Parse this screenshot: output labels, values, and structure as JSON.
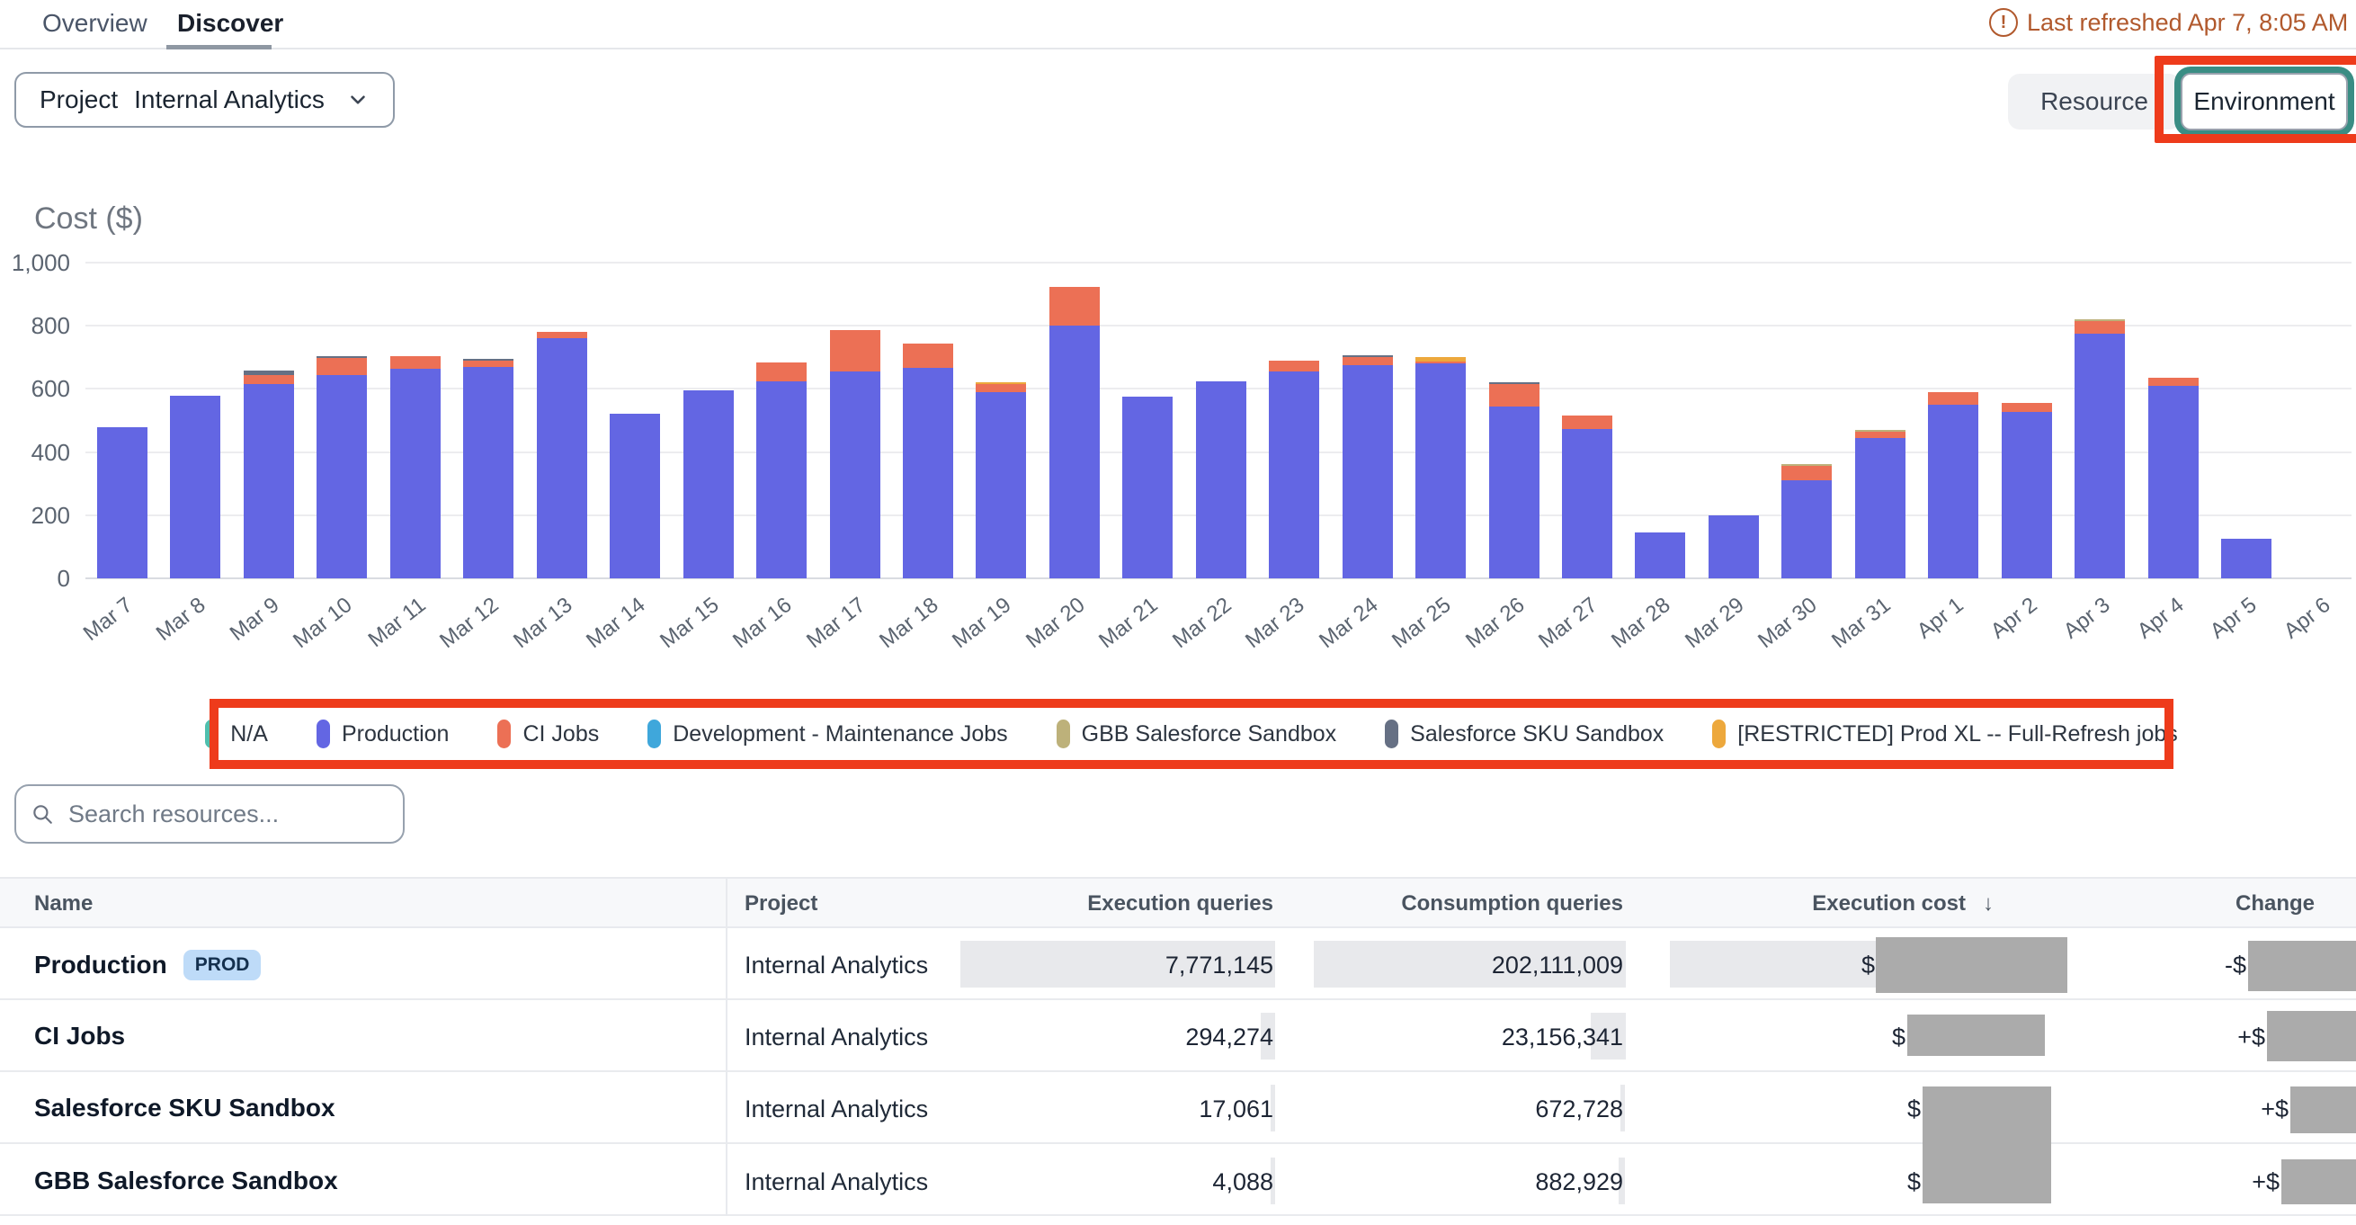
{
  "tabs": {
    "overview": "Overview",
    "discover": "Discover"
  },
  "refresh": {
    "text": "Last refreshed Apr 7, 8:05 AM PD",
    "icon": "alert-circle-icon",
    "color": "#b1592d"
  },
  "filters": {
    "project_label": "Project",
    "project_value": "Internal Analytics",
    "toggle": {
      "resource": "Resource",
      "environment": "Environment",
      "selected": "Environment"
    }
  },
  "annotation_color": "#ee3b1b",
  "chart_data": {
    "type": "bar",
    "stacked": true,
    "title": "Cost ($)",
    "ylabel": "Cost ($)",
    "ylim": [
      0,
      1000
    ],
    "ytick_values": [
      1000,
      800,
      600,
      400,
      200,
      0
    ],
    "yticks": [
      "1,000",
      "800",
      "600",
      "400",
      "200",
      "0"
    ],
    "grid": true,
    "legend_position": "bottom",
    "categories": [
      "Mar 7",
      "Mar 8",
      "Mar 9",
      "Mar 10",
      "Mar 11",
      "Mar 12",
      "Mar 13",
      "Mar 14",
      "Mar 15",
      "Mar 16",
      "Mar 17",
      "Mar 18",
      "Mar 19",
      "Mar 20",
      "Mar 21",
      "Mar 22",
      "Mar 23",
      "Mar 24",
      "Mar 25",
      "Mar 26",
      "Mar 27",
      "Mar 28",
      "Mar 29",
      "Mar 30",
      "Mar 31",
      "Apr 1",
      "Apr 2",
      "Apr 3",
      "Apr 4",
      "Apr 5",
      "Apr 6"
    ],
    "series": [
      {
        "name": "N/A",
        "color": "#4fbfad",
        "values": [
          0,
          0,
          0,
          0,
          0,
          0,
          0,
          0,
          0,
          0,
          0,
          0,
          0,
          0,
          0,
          0,
          0,
          0,
          0,
          0,
          0,
          0,
          0,
          0,
          0,
          0,
          0,
          0,
          0,
          0,
          0
        ]
      },
      {
        "name": "Production",
        "color": "#6366e3",
        "values": [
          480,
          577,
          615,
          645,
          665,
          670,
          760,
          520,
          595,
          625,
          655,
          668,
          590,
          800,
          575,
          623,
          655,
          675,
          680,
          545,
          472,
          146,
          199,
          310,
          445,
          550,
          528,
          775,
          610,
          125,
          0
        ]
      },
      {
        "name": "CI Jobs",
        "color": "#ec7055",
        "values": [
          0,
          0,
          30,
          52,
          40,
          20,
          22,
          0,
          0,
          60,
          130,
          76,
          25,
          122,
          0,
          0,
          34,
          25,
          8,
          70,
          44,
          0,
          0,
          45,
          19,
          40,
          28,
          40,
          25,
          0,
          0
        ]
      },
      {
        "name": "Development - Maintenance Jobs",
        "color": "#3fa7db",
        "values": [
          0,
          0,
          0,
          0,
          0,
          0,
          0,
          0,
          0,
          0,
          0,
          0,
          0,
          0,
          0,
          0,
          0,
          0,
          0,
          0,
          0,
          0,
          0,
          0,
          0,
          0,
          0,
          0,
          0,
          0,
          0
        ]
      },
      {
        "name": "GBB Salesforce Sandbox",
        "color": "#bdb17a",
        "values": [
          0,
          0,
          0,
          0,
          0,
          0,
          0,
          0,
          0,
          0,
          0,
          0,
          0,
          0,
          0,
          0,
          0,
          0,
          0,
          0,
          0,
          0,
          0,
          4,
          4,
          0,
          0,
          4,
          0,
          0,
          0
        ]
      },
      {
        "name": "Salesforce SKU Sandbox",
        "color": "#667084",
        "values": [
          0,
          0,
          12,
          4,
          0,
          4,
          0,
          0,
          0,
          0,
          0,
          0,
          0,
          0,
          0,
          0,
          0,
          3,
          0,
          3,
          0,
          0,
          0,
          0,
          0,
          0,
          0,
          0,
          0,
          0,
          0
        ]
      },
      {
        "name": "[RESTRICTED] Prod XL -- Full-Refresh jobs",
        "color": "#eda83c",
        "values": [
          0,
          0,
          0,
          0,
          0,
          0,
          0,
          0,
          0,
          0,
          0,
          0,
          6,
          0,
          0,
          0,
          0,
          0,
          14,
          0,
          0,
          0,
          0,
          0,
          0,
          0,
          0,
          0,
          0,
          0,
          0
        ]
      }
    ]
  },
  "search": {
    "placeholder": "Search resources..."
  },
  "table": {
    "columns": [
      "Name",
      "Project",
      "Execution queries",
      "Consumption queries",
      "Execution cost",
      "Change"
    ],
    "sort": {
      "column": "Execution cost",
      "direction": "desc",
      "arrow": "↓"
    },
    "rows": [
      {
        "name": "Production",
        "badge": "PROD",
        "project": "Internal Analytics",
        "execution_queries": "7,771,145",
        "consumption_queries": "202,111,009",
        "execution_cost": "$",
        "change": "-$",
        "change_dir": "down"
      },
      {
        "name": "CI Jobs",
        "badge": "",
        "project": "Internal Analytics",
        "execution_queries": "294,274",
        "consumption_queries": "23,156,341",
        "execution_cost": "$",
        "change": "+$",
        "change_dir": "up"
      },
      {
        "name": "Salesforce SKU Sandbox",
        "badge": "",
        "project": "Internal Analytics",
        "execution_queries": "17,061",
        "consumption_queries": "672,728",
        "execution_cost": "$",
        "change": "+$",
        "change_dir": "up"
      },
      {
        "name": "GBB Salesforce Sandbox",
        "badge": "",
        "project": "Internal Analytics",
        "execution_queries": "4,088",
        "consumption_queries": "882,929",
        "execution_cost": "$",
        "change": "+$",
        "change_dir": "up"
      }
    ]
  }
}
